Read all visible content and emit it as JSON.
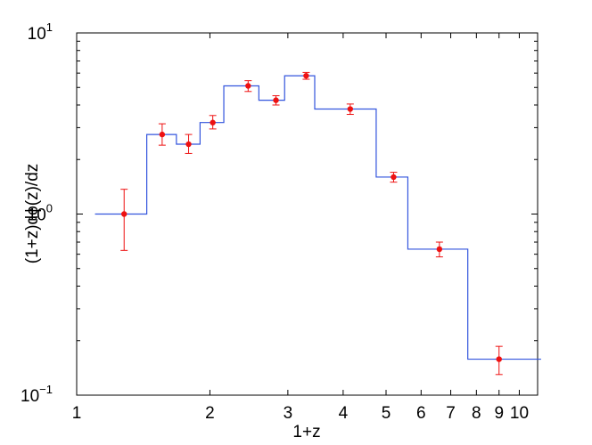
{
  "chart_data": {
    "type": "step-with-errorbars",
    "xscale": "log",
    "yscale": "log",
    "xlim": [
      1,
      11
    ],
    "ylim": [
      0.1,
      10
    ],
    "xlabel": "1+z",
    "ylabel": "(1+z)dϕ(z)/dz",
    "x_ticks": [
      {
        "value": 1,
        "label": "1"
      },
      {
        "value": 2,
        "label": "2"
      },
      {
        "value": 3,
        "label": "3"
      },
      {
        "value": 4,
        "label": "4"
      },
      {
        "value": 5,
        "label": "5"
      },
      {
        "value": 6,
        "label": "6"
      },
      {
        "value": 7,
        "label": "7"
      },
      {
        "value": 8,
        "label": "8"
      },
      {
        "value": 9,
        "label": "9"
      },
      {
        "value": 10,
        "label": "10"
      }
    ],
    "y_ticks": [
      {
        "value": 0.1,
        "base": "10",
        "exp": "−1"
      },
      {
        "value": 1,
        "base": "10",
        "exp": "0"
      },
      {
        "value": 10,
        "base": "10",
        "exp": "1"
      }
    ],
    "step_series": {
      "color": "#3355dd",
      "edges": [
        1.1,
        1.44,
        1.68,
        1.9,
        2.15,
        2.58,
        2.95,
        3.45,
        4.75,
        5.6,
        7.65,
        11.2
      ],
      "values": [
        1.0,
        2.75,
        2.43,
        3.2,
        5.1,
        4.25,
        5.8,
        3.8,
        1.6,
        0.64,
        0.158
      ]
    },
    "points": {
      "color": "#ee1111",
      "x": [
        1.28,
        1.56,
        1.79,
        2.03,
        2.44,
        2.82,
        3.3,
        4.15,
        5.2,
        6.6,
        9.0
      ],
      "y": [
        1.0,
        2.75,
        2.43,
        3.2,
        5.1,
        4.25,
        5.8,
        3.8,
        1.6,
        0.64,
        0.158
      ],
      "err_low": [
        0.37,
        0.35,
        0.27,
        0.25,
        0.35,
        0.25,
        0.25,
        0.25,
        0.1,
        0.06,
        0.028
      ],
      "err_high": [
        0.37,
        0.4,
        0.32,
        0.3,
        0.35,
        0.25,
        0.25,
        0.25,
        0.1,
        0.06,
        0.028
      ]
    }
  }
}
